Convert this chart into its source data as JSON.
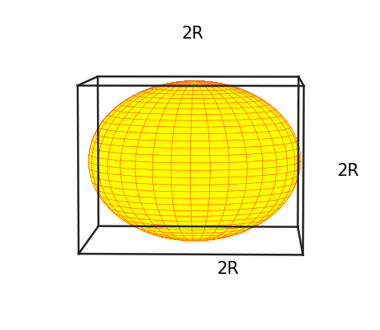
{
  "sphere_face_color": "#FFFF00",
  "sphere_edge_color": "#FF6600",
  "sphere_alpha": 1.0,
  "cube_color": "#222222",
  "cube_linewidth": 1.8,
  "background_color": "#ffffff",
  "label_2R_top": "2R",
  "label_2R_right": "2R",
  "label_2R_bottom": "2R",
  "label_fontsize": 15,
  "sphere_u_count": 36,
  "sphere_v_count": 36,
  "elev": 5,
  "azim": -88
}
